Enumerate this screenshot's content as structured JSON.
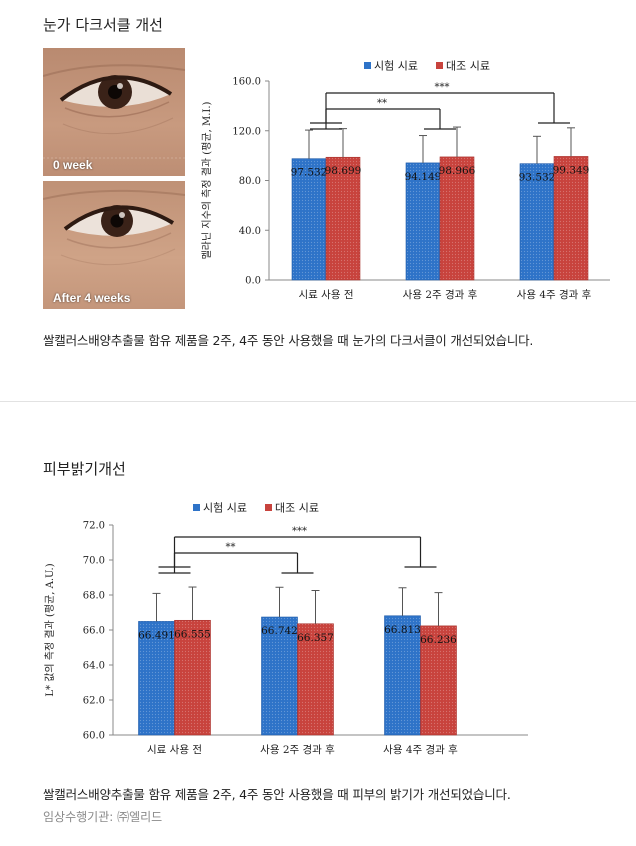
{
  "section1": {
    "title": "눈가 다크서클 개선",
    "photos": [
      {
        "label": "0 week"
      },
      {
        "label": "After 4 weeks"
      }
    ],
    "caption": "쌀캘러스배양추출물 함유 제품을 2주, 4주 동안 사용했을 때 눈가의 다크서클이 개선되었습니다."
  },
  "section2": {
    "title": "피부밝기개선",
    "caption": "쌀캘러스배양추출물 함유 제품을 2주, 4주 동안 사용했을 때 피부의 밝기가 개선되었습니다.",
    "credit": "임상수행기관: ㈜엘리드"
  },
  "colors": {
    "test": "#2e73c8",
    "control": "#c8433d"
  },
  "chart_data": [
    {
      "type": "bar",
      "categories": [
        "시료 사용 전",
        "사용 2주 경과 후",
        "사용 4주 경과 후"
      ],
      "series": [
        {
          "name": "시험 시료",
          "values": [
            97.532,
            94.149,
            93.532
          ],
          "value_labels": [
            "97.532",
            "94.149",
            "93.532"
          ],
          "error": [
            23,
            22,
            22
          ]
        },
        {
          "name": "대조 시료",
          "values": [
            98.699,
            98.966,
            99.349
          ],
          "value_labels": [
            "98.699",
            "98.966",
            "99.349"
          ],
          "error": [
            23,
            24,
            23
          ]
        }
      ],
      "ylabel": "멜라닌 지수의 측정 결과 (평균, M.I.)",
      "ylim": [
        0,
        160
      ],
      "yticks": [
        "0.0",
        "40.0",
        "80.0",
        "120.0",
        "160.0"
      ],
      "legend": "top",
      "significance": [
        {
          "from": "시료 사용 전",
          "to": "사용 2주 경과 후",
          "label": "**"
        },
        {
          "from": "시료 사용 전",
          "to": "사용 4주 경과 후",
          "label": "***"
        }
      ]
    },
    {
      "type": "bar",
      "categories": [
        "시료 사용 전",
        "사용 2주 경과 후",
        "사용 4주 경과 후"
      ],
      "series": [
        {
          "name": "시험 시료",
          "values": [
            66.491,
            66.742,
            66.813
          ],
          "value_labels": [
            "66.491",
            "66.742",
            "66.813"
          ],
          "error": [
            1.6,
            1.7,
            1.6
          ]
        },
        {
          "name": "대조 시료",
          "values": [
            66.555,
            66.357,
            66.236
          ],
          "value_labels": [
            "66.555",
            "66.357",
            "66.236"
          ],
          "error": [
            1.9,
            1.9,
            1.9
          ]
        }
      ],
      "ylabel": "L* 값의 측정 결과 (평균, A.U.)",
      "ylim": [
        60,
        72
      ],
      "yticks": [
        "60.0",
        "62.0",
        "64.0",
        "66.0",
        "68.0",
        "70.0",
        "72.0"
      ],
      "legend": "top",
      "significance": [
        {
          "from": "시료 사용 전",
          "to": "사용 2주 경과 후",
          "label": "**"
        },
        {
          "from": "시료 사용 전",
          "to": "사용 4주 경과 후",
          "label": "***"
        }
      ]
    }
  ]
}
